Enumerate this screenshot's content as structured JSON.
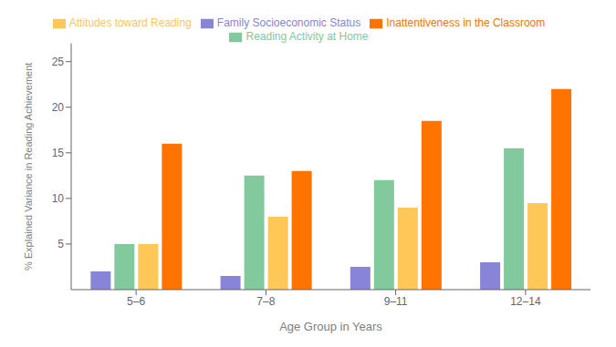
{
  "chart_data": {
    "type": "bar",
    "categories": [
      "5–6",
      "7–8",
      "9–11",
      "12–14"
    ],
    "series": [
      {
        "name": "Family Socioeconomic Status",
        "color": "#8884d8",
        "values": [
          2,
          1.5,
          2.5,
          3
        ]
      },
      {
        "name": "Reading Activity at Home",
        "color": "#82ca9d",
        "values": [
          5,
          12.5,
          12,
          15.5
        ]
      },
      {
        "name": "Attitudes toward Reading",
        "color": "#ffc658",
        "values": [
          5,
          8,
          9,
          9.5
        ]
      },
      {
        "name": "Inattentiveness in the Classroom",
        "color": "#ff7300",
        "values": [
          16,
          13,
          18.5,
          22
        ]
      }
    ],
    "xlabel": "Age Group in Years",
    "ylabel": "% Explained Variance in Reading Achievement",
    "ylim": [
      0,
      27
    ],
    "yticks": [
      5,
      10,
      15,
      20,
      25
    ],
    "grid": false,
    "legend": "top"
  }
}
